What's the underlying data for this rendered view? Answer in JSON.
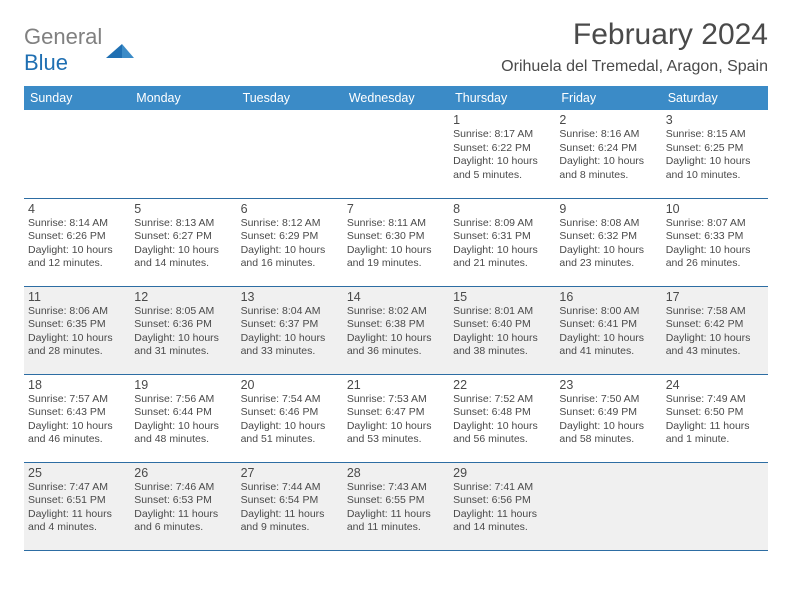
{
  "logo": {
    "word1": "General",
    "word2": "Blue"
  },
  "title": "February 2024",
  "location": "Orihuela del Tremedal, Aragon, Spain",
  "colors": {
    "header_bg": "#3b8bc7",
    "header_text": "#ffffff",
    "rule": "#2d6da3",
    "shade": "#f0f0f0",
    "text": "#4a4a4a",
    "logo_gray": "#808080",
    "logo_blue": "#1f6fb2"
  },
  "day_headers": [
    "Sunday",
    "Monday",
    "Tuesday",
    "Wednesday",
    "Thursday",
    "Friday",
    "Saturday"
  ],
  "weeks": [
    [
      null,
      null,
      null,
      null,
      {
        "n": "1",
        "sr": "Sunrise: 8:17 AM",
        "ss": "Sunset: 6:22 PM",
        "dl": "Daylight: 10 hours and 5 minutes."
      },
      {
        "n": "2",
        "sr": "Sunrise: 8:16 AM",
        "ss": "Sunset: 6:24 PM",
        "dl": "Daylight: 10 hours and 8 minutes."
      },
      {
        "n": "3",
        "sr": "Sunrise: 8:15 AM",
        "ss": "Sunset: 6:25 PM",
        "dl": "Daylight: 10 hours and 10 minutes."
      }
    ],
    [
      {
        "n": "4",
        "sr": "Sunrise: 8:14 AM",
        "ss": "Sunset: 6:26 PM",
        "dl": "Daylight: 10 hours and 12 minutes."
      },
      {
        "n": "5",
        "sr": "Sunrise: 8:13 AM",
        "ss": "Sunset: 6:27 PM",
        "dl": "Daylight: 10 hours and 14 minutes."
      },
      {
        "n": "6",
        "sr": "Sunrise: 8:12 AM",
        "ss": "Sunset: 6:29 PM",
        "dl": "Daylight: 10 hours and 16 minutes."
      },
      {
        "n": "7",
        "sr": "Sunrise: 8:11 AM",
        "ss": "Sunset: 6:30 PM",
        "dl": "Daylight: 10 hours and 19 minutes."
      },
      {
        "n": "8",
        "sr": "Sunrise: 8:09 AM",
        "ss": "Sunset: 6:31 PM",
        "dl": "Daylight: 10 hours and 21 minutes."
      },
      {
        "n": "9",
        "sr": "Sunrise: 8:08 AM",
        "ss": "Sunset: 6:32 PM",
        "dl": "Daylight: 10 hours and 23 minutes."
      },
      {
        "n": "10",
        "sr": "Sunrise: 8:07 AM",
        "ss": "Sunset: 6:33 PM",
        "dl": "Daylight: 10 hours and 26 minutes."
      }
    ],
    [
      {
        "n": "11",
        "sr": "Sunrise: 8:06 AM",
        "ss": "Sunset: 6:35 PM",
        "dl": "Daylight: 10 hours and 28 minutes."
      },
      {
        "n": "12",
        "sr": "Sunrise: 8:05 AM",
        "ss": "Sunset: 6:36 PM",
        "dl": "Daylight: 10 hours and 31 minutes."
      },
      {
        "n": "13",
        "sr": "Sunrise: 8:04 AM",
        "ss": "Sunset: 6:37 PM",
        "dl": "Daylight: 10 hours and 33 minutes."
      },
      {
        "n": "14",
        "sr": "Sunrise: 8:02 AM",
        "ss": "Sunset: 6:38 PM",
        "dl": "Daylight: 10 hours and 36 minutes."
      },
      {
        "n": "15",
        "sr": "Sunrise: 8:01 AM",
        "ss": "Sunset: 6:40 PM",
        "dl": "Daylight: 10 hours and 38 minutes."
      },
      {
        "n": "16",
        "sr": "Sunrise: 8:00 AM",
        "ss": "Sunset: 6:41 PM",
        "dl": "Daylight: 10 hours and 41 minutes."
      },
      {
        "n": "17",
        "sr": "Sunrise: 7:58 AM",
        "ss": "Sunset: 6:42 PM",
        "dl": "Daylight: 10 hours and 43 minutes."
      }
    ],
    [
      {
        "n": "18",
        "sr": "Sunrise: 7:57 AM",
        "ss": "Sunset: 6:43 PM",
        "dl": "Daylight: 10 hours and 46 minutes."
      },
      {
        "n": "19",
        "sr": "Sunrise: 7:56 AM",
        "ss": "Sunset: 6:44 PM",
        "dl": "Daylight: 10 hours and 48 minutes."
      },
      {
        "n": "20",
        "sr": "Sunrise: 7:54 AM",
        "ss": "Sunset: 6:46 PM",
        "dl": "Daylight: 10 hours and 51 minutes."
      },
      {
        "n": "21",
        "sr": "Sunrise: 7:53 AM",
        "ss": "Sunset: 6:47 PM",
        "dl": "Daylight: 10 hours and 53 minutes."
      },
      {
        "n": "22",
        "sr": "Sunrise: 7:52 AM",
        "ss": "Sunset: 6:48 PM",
        "dl": "Daylight: 10 hours and 56 minutes."
      },
      {
        "n": "23",
        "sr": "Sunrise: 7:50 AM",
        "ss": "Sunset: 6:49 PM",
        "dl": "Daylight: 10 hours and 58 minutes."
      },
      {
        "n": "24",
        "sr": "Sunrise: 7:49 AM",
        "ss": "Sunset: 6:50 PM",
        "dl": "Daylight: 11 hours and 1 minute."
      }
    ],
    [
      {
        "n": "25",
        "sr": "Sunrise: 7:47 AM",
        "ss": "Sunset: 6:51 PM",
        "dl": "Daylight: 11 hours and 4 minutes."
      },
      {
        "n": "26",
        "sr": "Sunrise: 7:46 AM",
        "ss": "Sunset: 6:53 PM",
        "dl": "Daylight: 11 hours and 6 minutes."
      },
      {
        "n": "27",
        "sr": "Sunrise: 7:44 AM",
        "ss": "Sunset: 6:54 PM",
        "dl": "Daylight: 11 hours and 9 minutes."
      },
      {
        "n": "28",
        "sr": "Sunrise: 7:43 AM",
        "ss": "Sunset: 6:55 PM",
        "dl": "Daylight: 11 hours and 11 minutes."
      },
      {
        "n": "29",
        "sr": "Sunrise: 7:41 AM",
        "ss": "Sunset: 6:56 PM",
        "dl": "Daylight: 11 hours and 14 minutes."
      },
      null,
      null
    ]
  ],
  "shaded_weeks": [
    2,
    4
  ]
}
